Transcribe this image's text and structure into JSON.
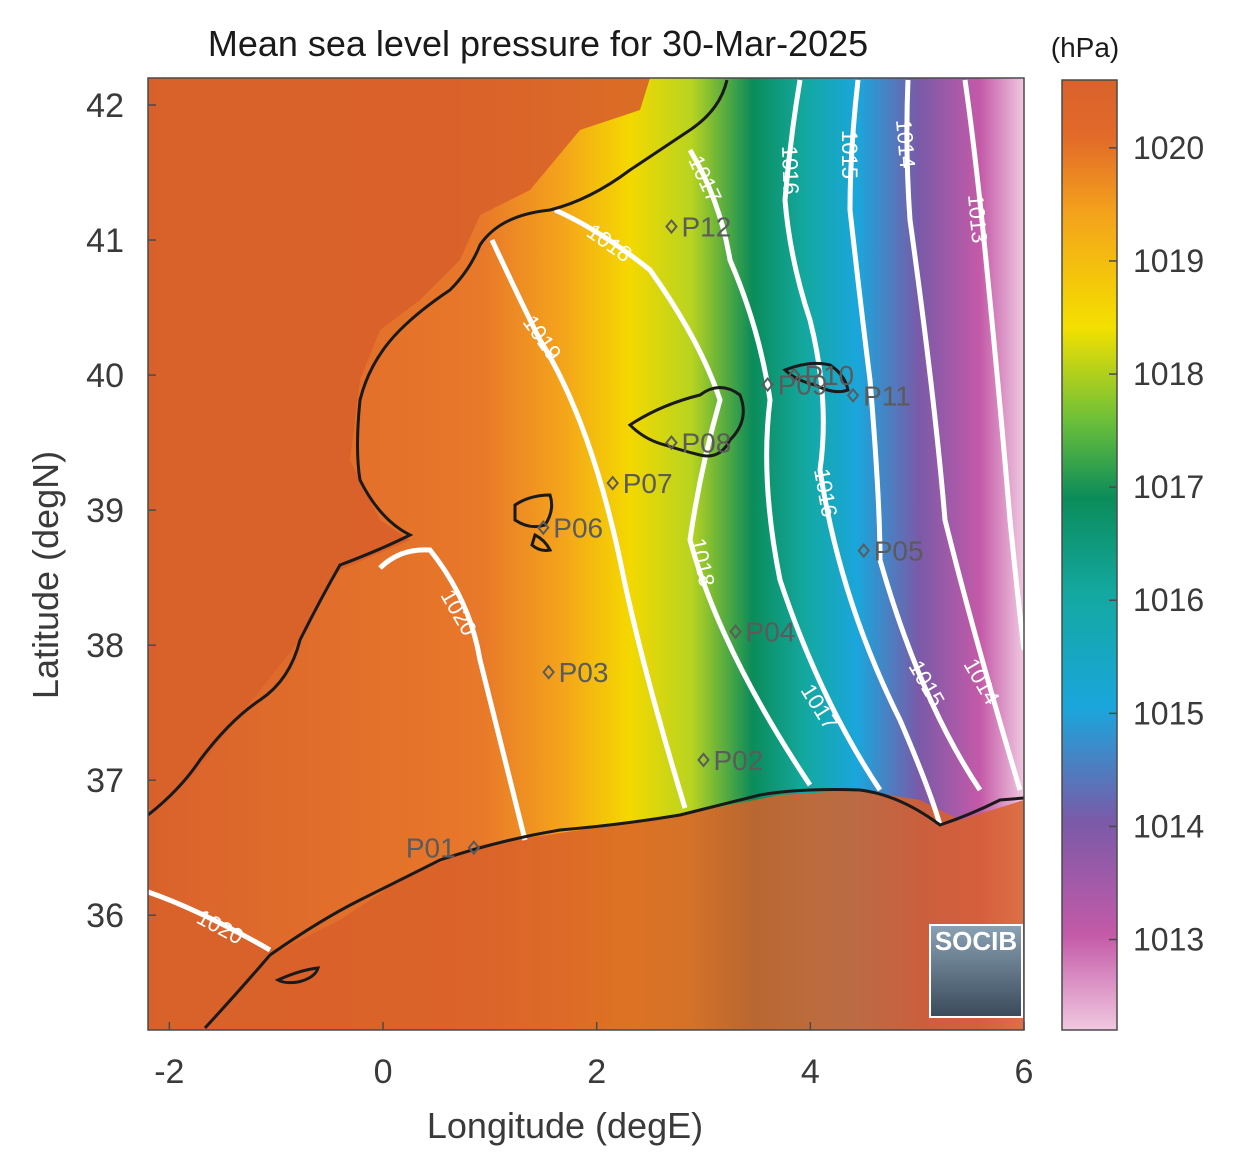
{
  "title": "Mean sea level pressure for 30-Mar-2025",
  "colorbar": {
    "unit": "(hPa)",
    "ticks": [
      "1013",
      "1014",
      "1015",
      "1016",
      "1017",
      "1018",
      "1019",
      "1020"
    ],
    "tick_values": [
      1013,
      1014,
      1015,
      1016,
      1017,
      1018,
      1019,
      1020
    ],
    "range": [
      1012.2,
      1020.6
    ],
    "colors": [
      "#f0c8e0",
      "#c45aa8",
      "#7a5aa8",
      "#1aa6dc",
      "#14a8a0",
      "#0b8c5a",
      "#6abf3a",
      "#f4e000",
      "#f4a21c",
      "#e26a2a",
      "#d9622c"
    ]
  },
  "axes": {
    "xlabel": "Longitude (degE)",
    "ylabel": "Latitude (degN)",
    "xticks": [
      "-2",
      "0",
      "2",
      "4",
      "6"
    ],
    "xtick_values": [
      -2,
      0,
      2,
      4,
      6
    ],
    "yticks": [
      "36",
      "37",
      "38",
      "39",
      "40",
      "41",
      "42"
    ],
    "ytick_values": [
      36,
      37,
      38,
      39,
      40,
      41,
      42
    ],
    "xlim": [
      -2.2,
      6.0
    ],
    "ylim": [
      35.15,
      42.2
    ]
  },
  "contour_labels": [
    "1020",
    "1020",
    "1019",
    "1018",
    "1018",
    "1017",
    "1017",
    "1016",
    "1016",
    "1015",
    "1015",
    "1014",
    "1014",
    "1013"
  ],
  "stations": [
    {
      "name": "P01",
      "lon": 0.85,
      "lat": 36.5
    },
    {
      "name": "P02",
      "lon": 3.0,
      "lat": 37.15
    },
    {
      "name": "P03",
      "lon": 1.55,
      "lat": 37.8
    },
    {
      "name": "P04",
      "lon": 3.3,
      "lat": 38.1
    },
    {
      "name": "P05",
      "lon": 4.5,
      "lat": 38.7
    },
    {
      "name": "P06",
      "lon": 1.5,
      "lat": 38.87
    },
    {
      "name": "P07",
      "lon": 2.15,
      "lat": 39.2
    },
    {
      "name": "P08",
      "lon": 2.7,
      "lat": 39.5
    },
    {
      "name": "P09",
      "lon": 3.6,
      "lat": 39.93
    },
    {
      "name": "P10",
      "lon": 3.85,
      "lat": 40.0
    },
    {
      "name": "P11",
      "lon": 4.4,
      "lat": 39.85
    },
    {
      "name": "P12",
      "lon": 2.7,
      "lat": 41.1
    }
  ],
  "logo": {
    "text": "SOCIB"
  }
}
